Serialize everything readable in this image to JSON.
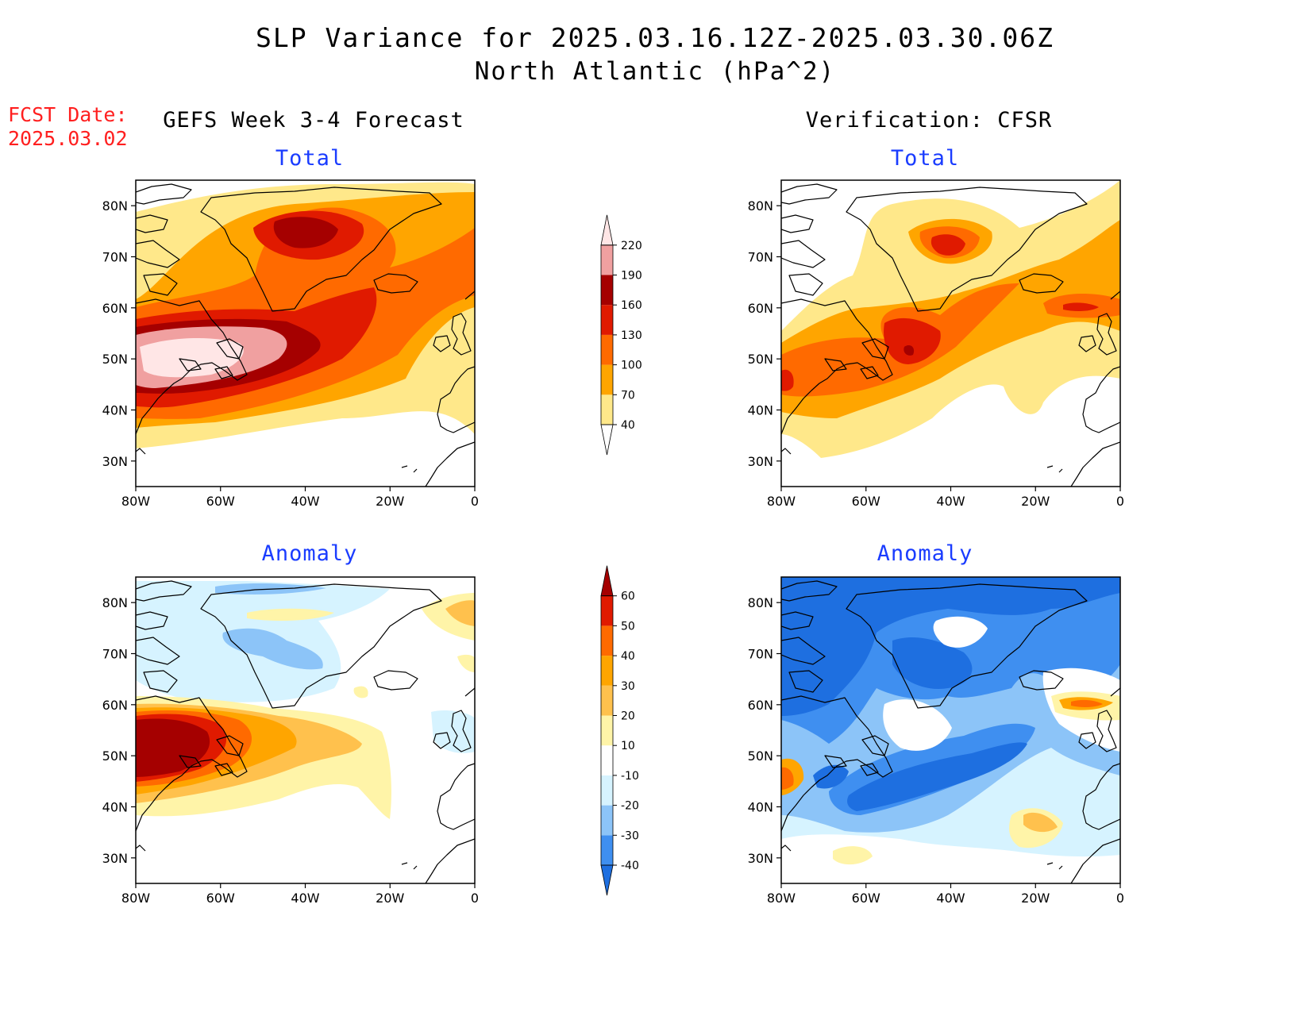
{
  "title_line1": "SLP Variance for 2025.03.16.12Z-2025.03.30.06Z",
  "title_line2": "North Atlantic (hPa^2)",
  "fcst_date_label": "FCST Date:",
  "fcst_date_value": "2025.03.02",
  "left_header": "GEFS Week 3-4 Forecast",
  "right_header": "Verification: CFSR",
  "panel_labels": {
    "top_left": "Total",
    "top_right": "Total",
    "bottom_left": "Anomaly",
    "bottom_right": "Anomaly"
  },
  "axes": {
    "lat_ticks": [
      "80N",
      "70N",
      "60N",
      "50N",
      "40N",
      "30N"
    ],
    "lon_ticks": [
      "80W",
      "60W",
      "40W",
      "20W",
      "0"
    ]
  },
  "total_colorbar": {
    "levels": [
      "40",
      "70",
      "100",
      "130",
      "160",
      "190",
      "220"
    ],
    "colors": [
      "#ffe88a",
      "#ffa500",
      "#ff6a00",
      "#e01a00",
      "#a50000",
      "#f0a0a0",
      "#ffe6e6"
    ]
  },
  "anomaly_colorbar": {
    "levels": [
      "-40",
      "-30",
      "-20",
      "-10",
      "10",
      "20",
      "30",
      "40",
      "50",
      "60"
    ],
    "colors": [
      "#1e6fe0",
      "#3f8ff0",
      "#8cc4f8",
      "#d6f3ff",
      "#ffffff",
      "#fff4a8",
      "#ffc14d",
      "#ffa500",
      "#ff6a00",
      "#e01a00",
      "#a50000"
    ]
  }
}
